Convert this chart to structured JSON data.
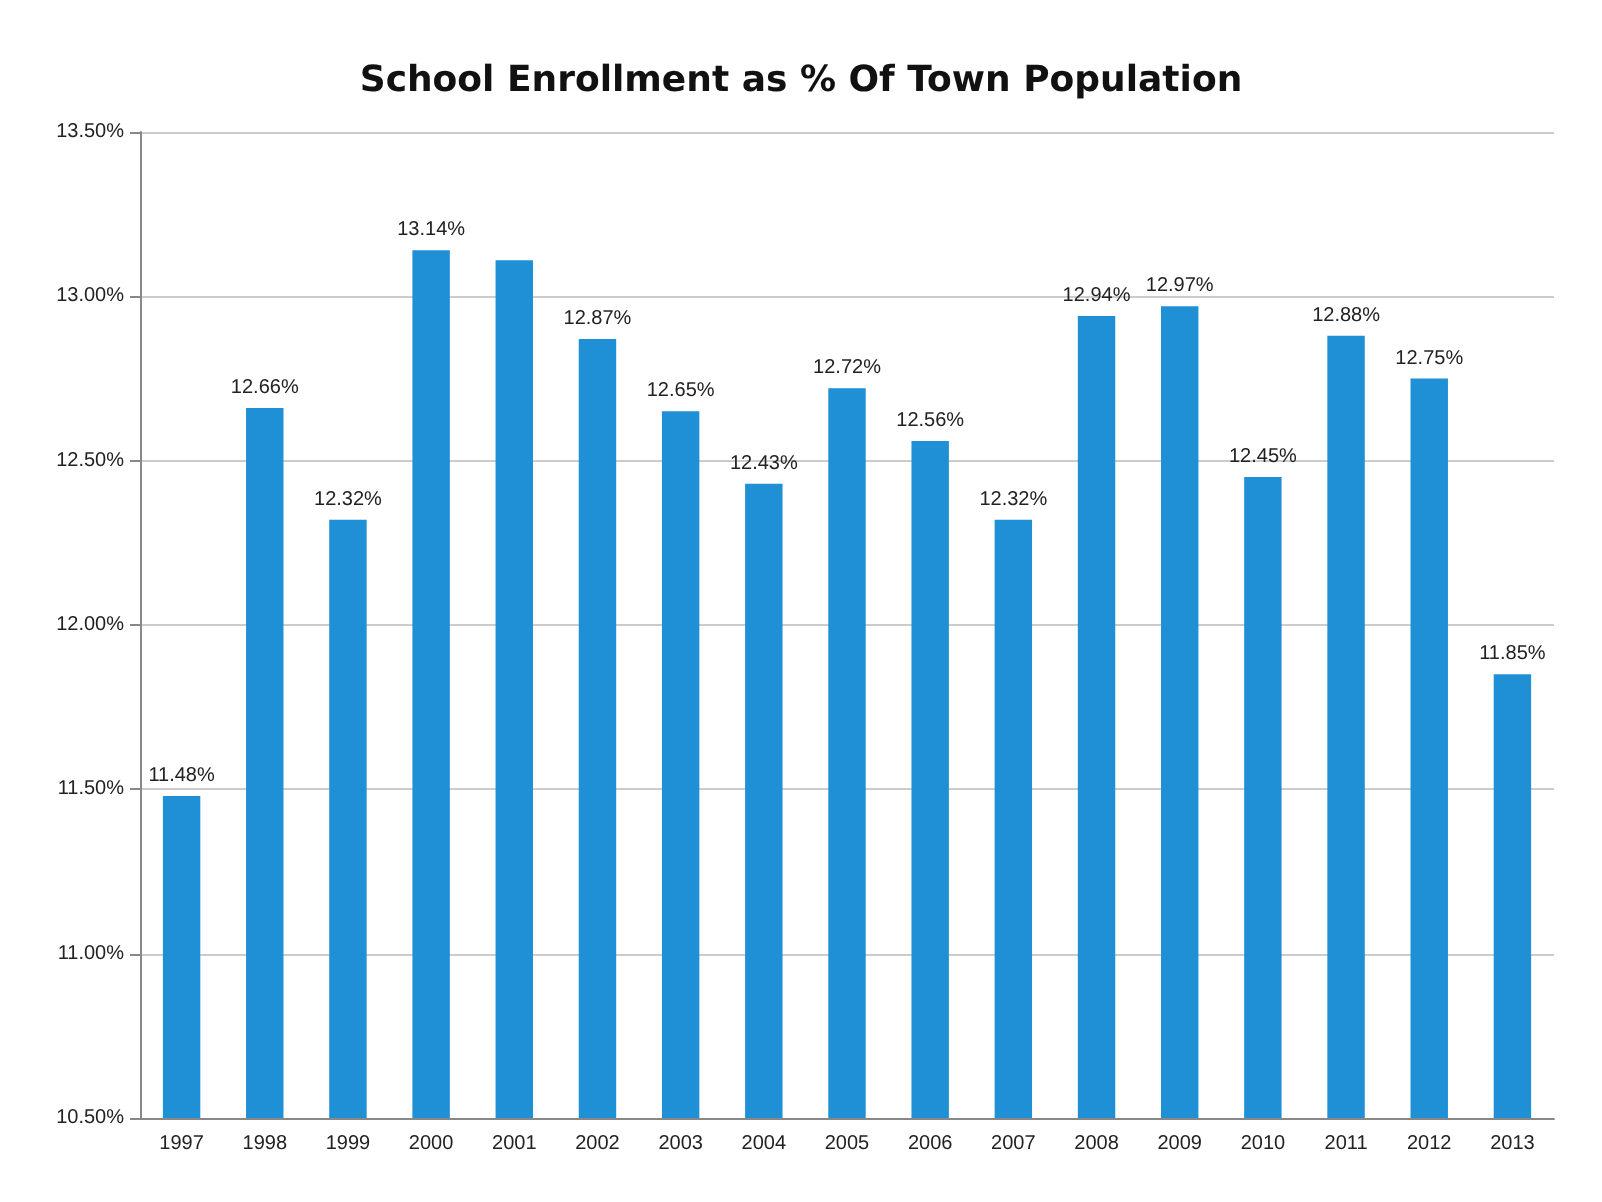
{
  "chart_data": {
    "type": "bar",
    "title": "School Enrollment as % Of Town Population",
    "categories": [
      "1997",
      "1998",
      "1999",
      "2000",
      "2001",
      "2002",
      "2003",
      "2004",
      "2005",
      "2006",
      "2007",
      "2008",
      "2009",
      "2010",
      "2011",
      "2012",
      "2013"
    ],
    "values": [
      11.48,
      12.66,
      12.32,
      13.14,
      13.11,
      12.87,
      12.65,
      12.43,
      12.72,
      12.56,
      12.32,
      12.94,
      12.97,
      12.45,
      12.88,
      12.75,
      11.85
    ],
    "value_labels": [
      "11.48%",
      "12.66%",
      "12.32%",
      "13.14%",
      null,
      "12.87%",
      "12.65%",
      "12.43%",
      "12.72%",
      "12.56%",
      "12.32%",
      "12.94%",
      "12.97%",
      "12.45%",
      "12.88%",
      "12.75%",
      "11.85%"
    ],
    "color": "#1f8fd6",
    "ylim": [
      10.5,
      13.5
    ],
    "yticks": [
      {
        "value": 10.5,
        "label": "10.50%"
      },
      {
        "value": 11,
        "label": "11.00%"
      },
      {
        "value": 11.5,
        "label": "11.50%"
      },
      {
        "value": 12,
        "label": "12.00%"
      },
      {
        "value": 12.5,
        "label": "12.50%"
      },
      {
        "value": 13,
        "label": "13.00%"
      },
      {
        "value": 13.5,
        "label": "13.50%"
      }
    ],
    "grid": "y"
  }
}
